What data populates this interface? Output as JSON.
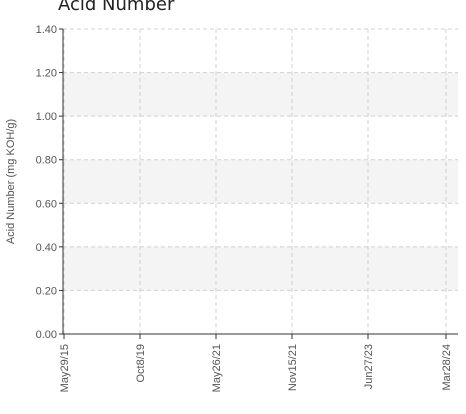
{
  "chart_data": {
    "type": "line",
    "title": "Acid Number",
    "xlabel": "",
    "ylabel": "Acid Number (mg KOH/g)",
    "ylim": [
      0,
      1.4
    ],
    "y_ticks": [
      "0.00",
      "0.20",
      "0.40",
      "0.60",
      "0.80",
      "1.00",
      "1.20",
      "1.40"
    ],
    "x_ticks": [
      "May29/15",
      "Oct8/19",
      "May26/21",
      "Nov15/21",
      "Jun27/23",
      "Mar28/24"
    ],
    "series": [],
    "grid": true,
    "banded_background": true,
    "colors": {
      "band": "#f4f4f4",
      "grid": "#d0d0d0",
      "axis": "#333333",
      "text": "#555555"
    }
  }
}
